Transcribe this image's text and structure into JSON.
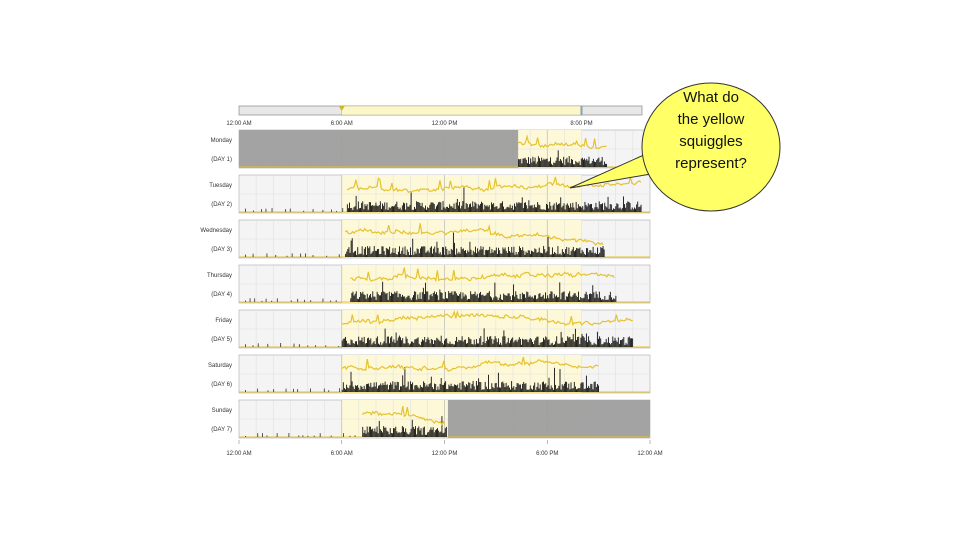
{
  "chart_data": {
    "type": "area",
    "x_range": [
      0,
      24
    ],
    "tick_labels_top": [
      "12:00 AM",
      "6:00 AM",
      "12:00 PM",
      "8:00 PM"
    ],
    "tick_labels_bottom": [
      "12:00 AM",
      "6:00 AM",
      "12:00 PM",
      "6:00 PM",
      "12:00 AM"
    ],
    "selection_window": [
      6,
      20
    ],
    "colors": {
      "yellow_line": "#e6c230",
      "black_bars": "#111111",
      "grey_shade": "#9e9e9e",
      "highlight": "#fdf9d8",
      "callout": "#ffff66"
    },
    "days": [
      {
        "name": "Monday",
        "label": "(DAY 1)",
        "no_data": [
          [
            0,
            16.3
          ]
        ],
        "activity": [
          16.3,
          21.5
        ]
      },
      {
        "name": "Tuesday",
        "label": "(DAY 2)",
        "no_data": [],
        "activity": [
          6.3,
          23.5
        ]
      },
      {
        "name": "Wednesday",
        "label": "(DAY 3)",
        "no_data": [],
        "activity": [
          6.2,
          21.3
        ]
      },
      {
        "name": "Thursday",
        "label": "(DAY 4)",
        "no_data": [],
        "activity": [
          6.5,
          22.0
        ]
      },
      {
        "name": "Friday",
        "label": "(DAY 5)",
        "no_data": [],
        "activity": [
          6.0,
          23.0
        ]
      },
      {
        "name": "Saturday",
        "label": "(DAY 6)",
        "no_data": [],
        "activity": [
          6.0,
          21.0
        ]
      },
      {
        "name": "Sunday",
        "label": "(DAY 7)",
        "no_data": [
          [
            12.2,
            24
          ]
        ],
        "activity": [
          7.2,
          12.1
        ]
      }
    ]
  },
  "callout": {
    "lines": [
      "What do",
      "the yellow",
      "squiggles",
      "represent?"
    ]
  }
}
